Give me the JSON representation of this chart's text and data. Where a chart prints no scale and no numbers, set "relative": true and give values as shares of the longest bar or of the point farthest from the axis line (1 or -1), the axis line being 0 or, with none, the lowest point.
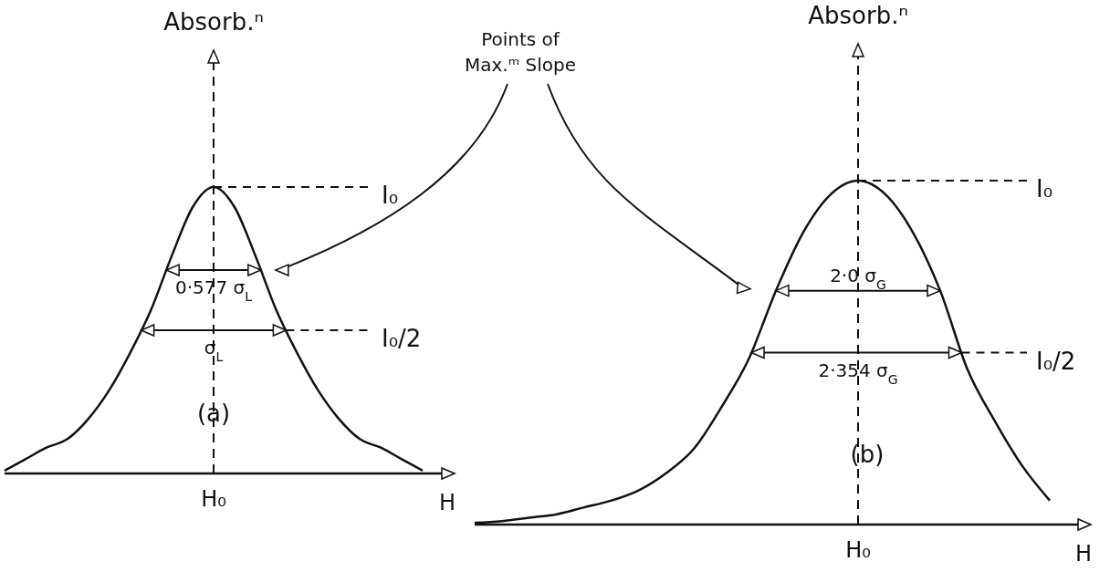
{
  "chart_data": [
    {
      "type": "line",
      "relative": true,
      "ylabel": "Absorb.ⁿ",
      "xlabel": "H",
      "categories": [
        null,
        null,
        null,
        null,
        null,
        null,
        null,
        null,
        null,
        null,
        null,
        null,
        null,
        null,
        null,
        null,
        null,
        null,
        null,
        null,
        null
      ],
      "series": [
        {
          "color": "#111111",
          "line_style": "solid",
          "values": [
            0.01,
            0.05,
            0.09,
            0.12,
            0.19,
            0.29,
            0.42,
            0.57,
            0.76,
            0.93,
            1,
            0.93,
            0.76,
            0.57,
            0.42,
            0.29,
            0.19,
            0.12,
            0.09,
            0.05,
            0.01
          ]
        }
      ],
      "ref_lines": [
        {
          "axis": "y",
          "value": 1,
          "label": "I₀",
          "line_style": "dashed"
        },
        {
          "axis": "y",
          "value": 0.5,
          "label": "I₀/2",
          "line_style": "dashed"
        }
      ],
      "annotations": [
        "0·577 σ$_{L}$",
        "σ$_{L}$",
        "H₀",
        "(a)",
        "Points of Max.ᵐ Slope"
      ]
    },
    {
      "type": "line",
      "relative": true,
      "ylabel": "Absorb.ⁿ",
      "xlabel": "H",
      "categories": [
        null,
        null,
        null,
        null,
        null,
        null,
        null,
        null,
        null,
        null,
        null,
        null,
        null,
        null,
        null,
        null,
        null,
        null,
        null,
        null,
        null,
        null
      ],
      "series": [
        {
          "color": "#111111",
          "line_style": "solid",
          "values": [
            0.005,
            0.01,
            0.02,
            0.03,
            0.05,
            0.07,
            0.1,
            0.15,
            0.22,
            0.34,
            0.48,
            0.68,
            0.85,
            0.96,
            1,
            0.96,
            0.85,
            0.68,
            0.45,
            0.3,
            0.17,
            0.07
          ]
        }
      ],
      "ref_lines": [
        {
          "axis": "y",
          "value": 1,
          "label": "I₀",
          "line_style": "dashed"
        },
        {
          "axis": "y",
          "value": 0.5,
          "label": "I₀/2",
          "line_style": "dashed"
        }
      ],
      "annotations": [
        "2·0 σ$_{G}$",
        "2·354 σ$_{G}$",
        "H₀",
        "(b)"
      ]
    }
  ]
}
